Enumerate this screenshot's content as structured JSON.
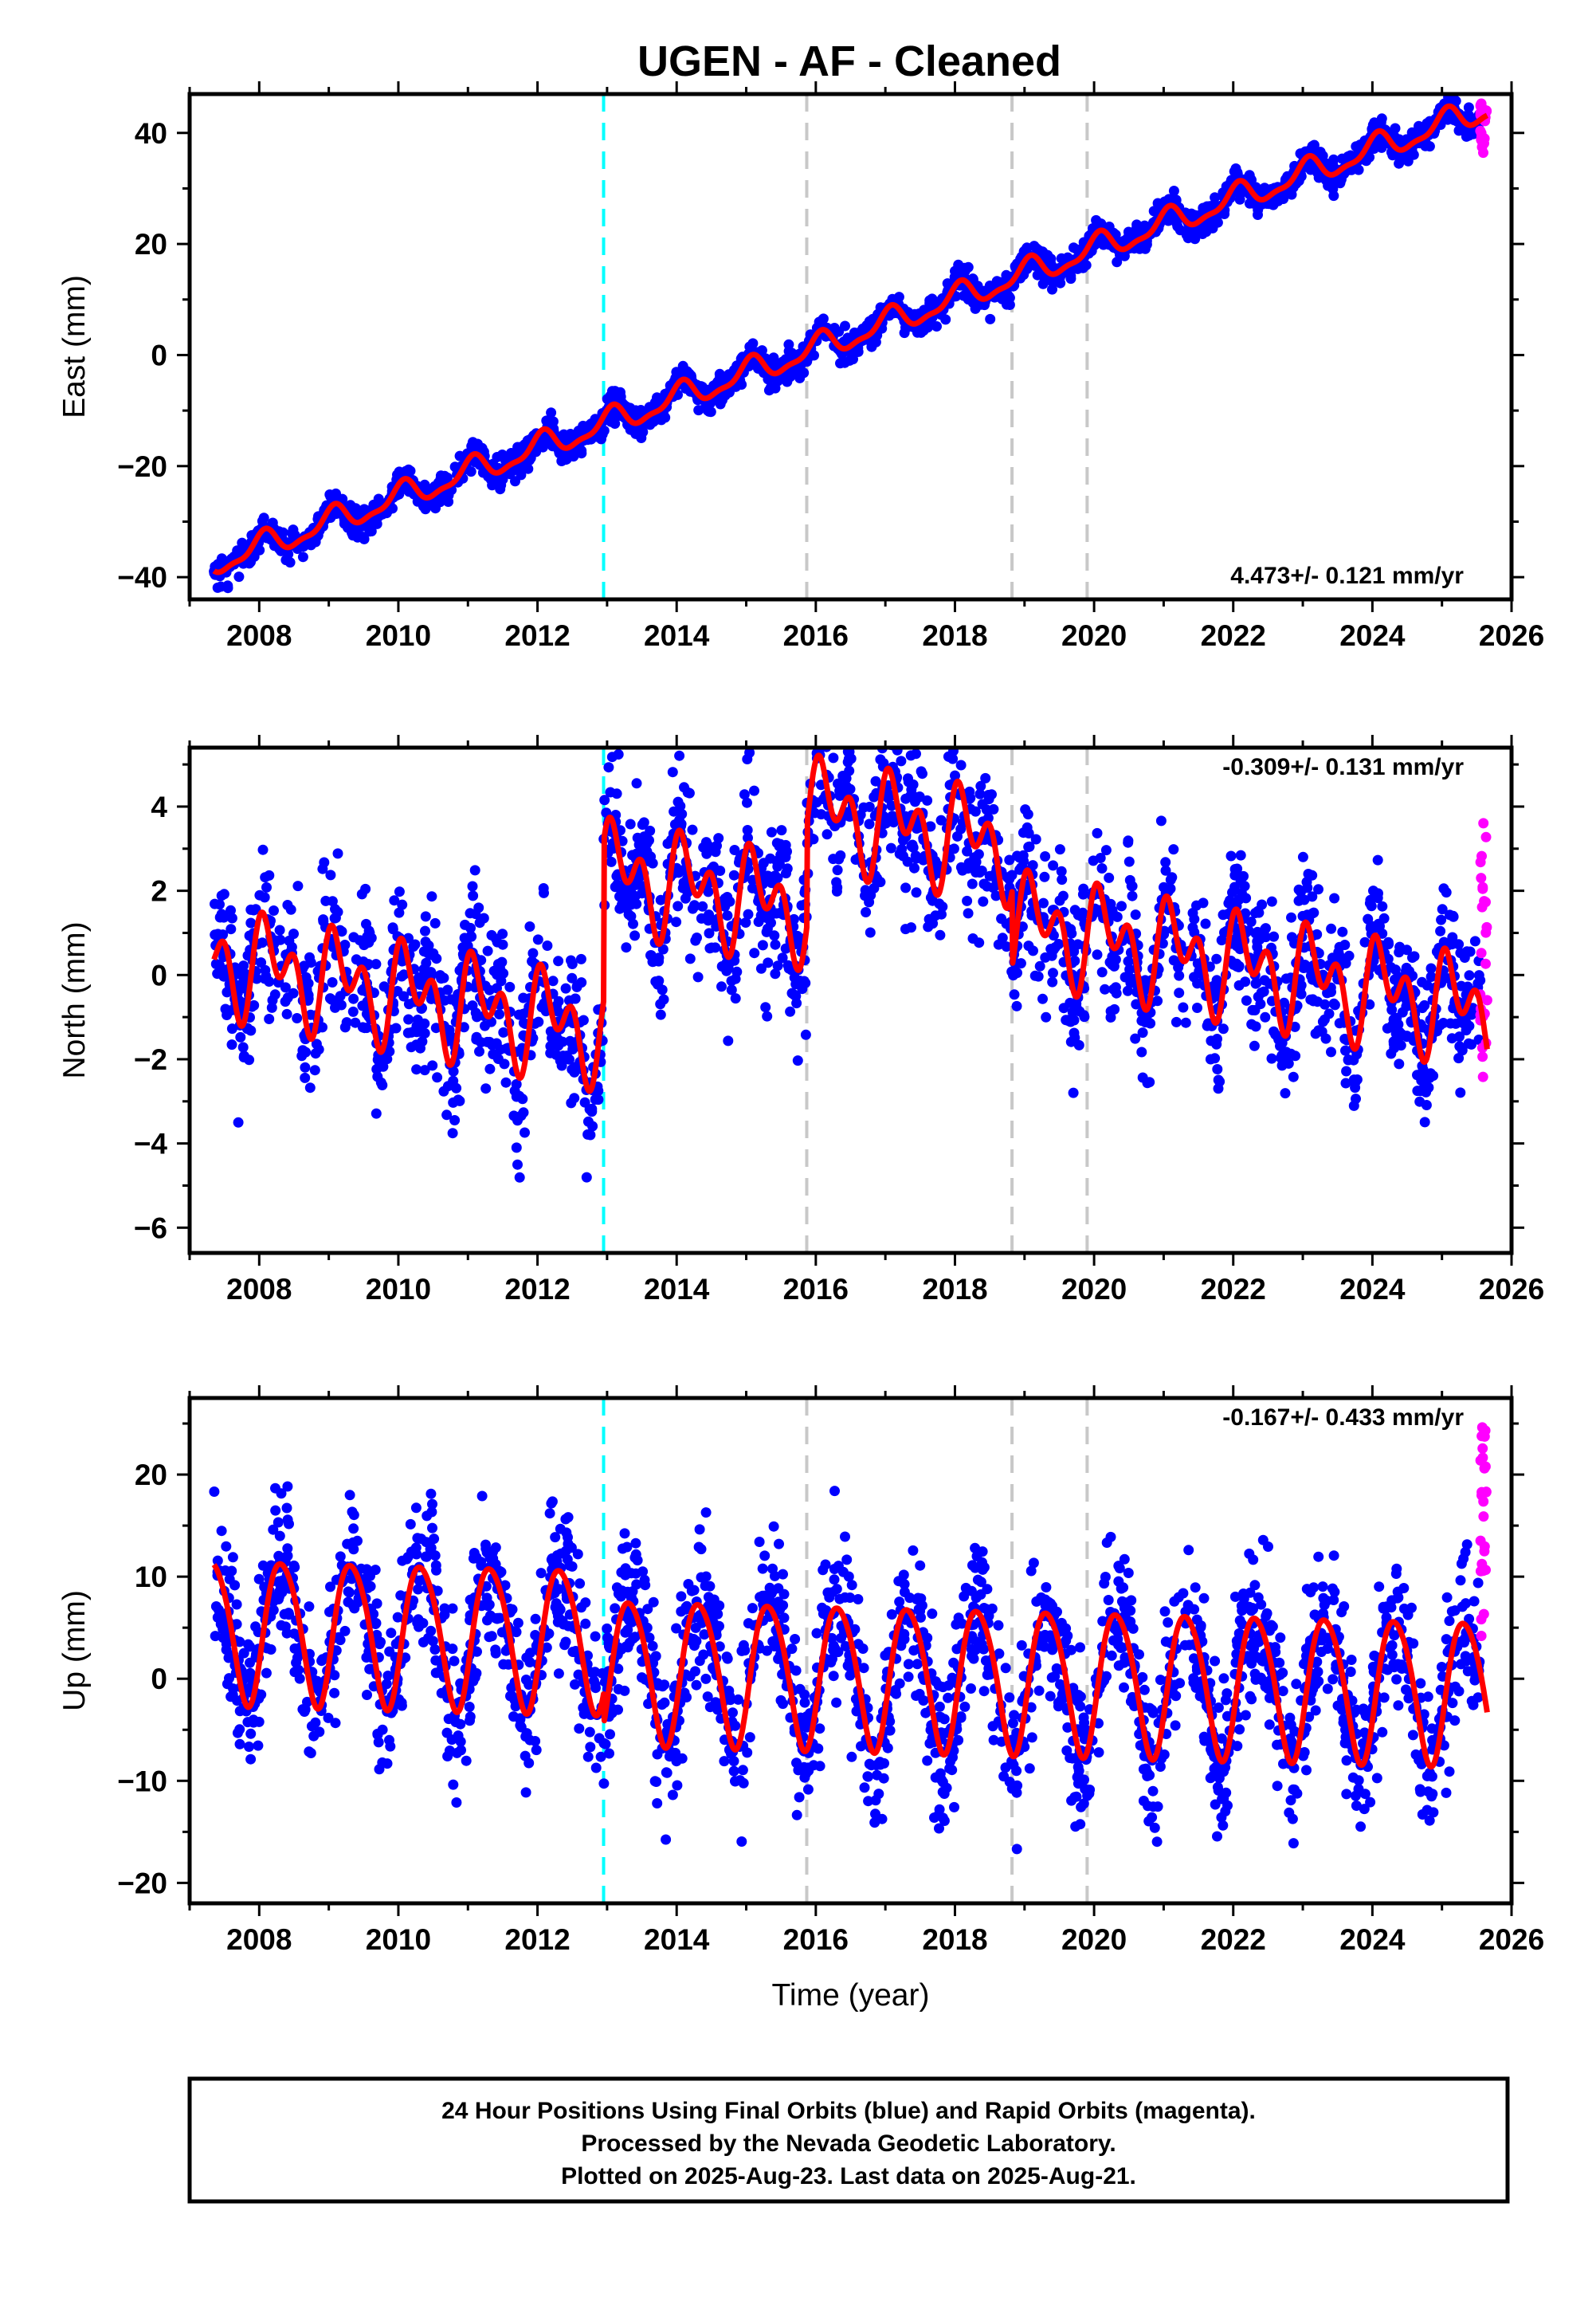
{
  "title": "UGEN  - AF - Cleaned",
  "footer": {
    "line1": "24 Hour Positions Using Final Orbits (blue) and Rapid Orbits (magenta).",
    "line2": "Processed by the Nevada Geodetic Laboratory.",
    "line3": "Plotted on 2025-Aug-23. Last data on 2025-Aug-21."
  },
  "colors": {
    "final_orbits": "#0000ff",
    "rapid_orbits": "#ff00ff",
    "model": "#ff0000",
    "cyan_event": "#00ffff",
    "gray_event": "#c8c8c8"
  },
  "chart_data": [
    {
      "type": "scatter",
      "ylabel": "East (mm)",
      "xlabel": "",
      "xlim": [
        2007.0,
        2026.0
      ],
      "ylim": [
        -44,
        47
      ],
      "xticks": [
        2008,
        2010,
        2012,
        2014,
        2016,
        2018,
        2020,
        2022,
        2024,
        2026
      ],
      "yticks": [
        -40,
        -20,
        0,
        20,
        40
      ],
      "rate_label": "4.473+/- 0.121 mm/yr",
      "rate_position": "bottom-right",
      "grid": false,
      "model": {
        "start": 2007.35,
        "end": 2025.65,
        "offset": -37.5,
        "trend_mm_per_yr": 4.473,
        "annual_amp": 2.2,
        "annual_phase": 1.2,
        "semiannual_amp": 0.8,
        "semiannual_phase": 0.3,
        "scatter": 1.3
      },
      "event_lines": [
        {
          "x": 2012.95,
          "color": "cyan"
        },
        {
          "x": 2015.87,
          "color": "gray"
        },
        {
          "x": 2018.82,
          "color": "gray"
        },
        {
          "x": 2019.9,
          "color": "gray"
        }
      ],
      "series": [
        {
          "name": "Final Orbits",
          "color": "blue",
          "x_range": [
            2007.35,
            2025.55
          ]
        },
        {
          "name": "Rapid Orbits",
          "color": "magenta",
          "x_range": [
            2025.55,
            2025.65
          ],
          "y_range": [
            36,
            46
          ]
        }
      ]
    },
    {
      "type": "scatter",
      "ylabel": "North (mm)",
      "xlabel": "",
      "xlim": [
        2007.0,
        2026.0
      ],
      "ylim": [
        -6.6,
        5.4
      ],
      "xticks": [
        2008,
        2010,
        2012,
        2014,
        2016,
        2018,
        2020,
        2022,
        2024,
        2026
      ],
      "yticks": [
        -6,
        -4,
        -2,
        0,
        2,
        4
      ],
      "rate_label": "-0.309+/- 0.131 mm/yr",
      "rate_position": "top-right",
      "grid": false,
      "model": {
        "start": 2007.35,
        "end": 2025.65,
        "offset": 0.4,
        "trend_mm_per_yr": -0.309,
        "annual_amp": 0.8,
        "annual_phase": 0.5,
        "semiannual_amp": 0.8,
        "semiannual_phase": 1.4,
        "scatter": 0.9
      },
      "steps": [
        {
          "x": 2012.95,
          "dy": 3.8
        },
        {
          "x": 2015.87,
          "dy": 2.4
        },
        {
          "x": 2018.82,
          "dy": -1.8
        }
      ],
      "event_lines": [
        {
          "x": 2012.95,
          "color": "cyan"
        },
        {
          "x": 2015.87,
          "color": "gray"
        },
        {
          "x": 2018.82,
          "color": "gray"
        },
        {
          "x": 2019.9,
          "color": "gray"
        }
      ],
      "series": [
        {
          "name": "Final Orbits",
          "color": "blue",
          "x_range": [
            2007.35,
            2025.55
          ]
        },
        {
          "name": "Rapid Orbits",
          "color": "magenta",
          "x_range": [
            2025.55,
            2025.65
          ],
          "y_range": [
            -2.6,
            3.7
          ]
        }
      ]
    },
    {
      "type": "scatter",
      "ylabel": "Up (mm)",
      "xlabel": "Time (year)",
      "xlim": [
        2007.0,
        2026.0
      ],
      "ylim": [
        -22,
        27.5
      ],
      "xticks": [
        2008,
        2010,
        2012,
        2014,
        2016,
        2018,
        2020,
        2022,
        2024,
        2026
      ],
      "yticks": [
        -20,
        -10,
        0,
        10,
        20
      ],
      "rate_label": "-0.167+/- 0.433 mm/yr",
      "rate_position": "top-right",
      "grid": false,
      "model": {
        "start": 2007.35,
        "end": 2025.65,
        "offset": 5.0,
        "trend_mm_per_yr": -0.167,
        "annual_amp": 7.0,
        "annual_phase": -0.5,
        "semiannual_amp": 0.8,
        "semiannual_phase": 0.0,
        "scatter": 3.8
      },
      "steps": [
        {
          "x": 2012.95,
          "dy": -3.0
        }
      ],
      "event_lines": [
        {
          "x": 2012.95,
          "color": "cyan"
        },
        {
          "x": 2015.87,
          "color": "gray"
        },
        {
          "x": 2018.82,
          "color": "gray"
        },
        {
          "x": 2019.9,
          "color": "gray"
        }
      ],
      "series": [
        {
          "name": "Final Orbits",
          "color": "blue",
          "x_range": [
            2007.35,
            2025.55
          ]
        },
        {
          "name": "Rapid Orbits",
          "color": "magenta",
          "x_range": [
            2025.55,
            2025.65
          ],
          "y_range": [
            3,
            25
          ]
        }
      ]
    }
  ]
}
